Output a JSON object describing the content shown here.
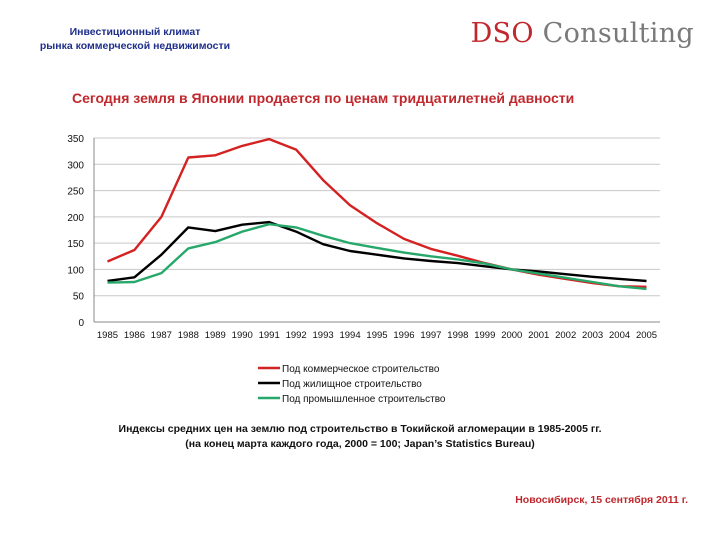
{
  "header": {
    "line1": "Инвестиционный климат",
    "line2": "рынка коммерческой недвижимости"
  },
  "brand": {
    "prefix": "DSO",
    "suffix": "Consulting"
  },
  "title": "Сегодня земля в Японии продается по ценам тридцатилетней давности",
  "chart_data": {
    "type": "line",
    "x": [
      1985,
      1986,
      1987,
      1988,
      1989,
      1990,
      1991,
      1992,
      1993,
      1994,
      1995,
      1996,
      1997,
      1998,
      1999,
      2000,
      2001,
      2002,
      2003,
      2004,
      2005
    ],
    "ylim": [
      0,
      350
    ],
    "yticks": [
      0,
      50,
      100,
      150,
      200,
      250,
      300,
      350
    ],
    "grid": true,
    "legend_position": "bottom",
    "series": [
      {
        "name": "Под коммерческое строительство",
        "color": "#d42121",
        "values": [
          115,
          137,
          200,
          313,
          317,
          335,
          348,
          328,
          270,
          222,
          188,
          158,
          139,
          126,
          112,
          100,
          90,
          82,
          74,
          68,
          67
        ]
      },
      {
        "name": "Под жилищное строительство",
        "color": "#000000",
        "values": [
          78,
          85,
          128,
          180,
          173,
          185,
          190,
          172,
          148,
          135,
          128,
          121,
          116,
          112,
          106,
          100,
          96,
          91,
          86,
          82,
          78
        ]
      },
      {
        "name": "Под промышленное строительство",
        "color": "#27a86b",
        "values": [
          75,
          76,
          93,
          140,
          152,
          172,
          186,
          180,
          164,
          150,
          141,
          132,
          125,
          119,
          111,
          100,
          92,
          84,
          76,
          68,
          63
        ]
      }
    ]
  },
  "caption": {
    "line1": "Индексы средних цен на землю под строительство в Токийской агломерации в 1985-2005 гг.",
    "line2": "(на конец марта каждого года, 2000 = 100; Japan’s Statistics Bureau)"
  },
  "footer": "Новосибирск, 15 сентября 2011 г."
}
